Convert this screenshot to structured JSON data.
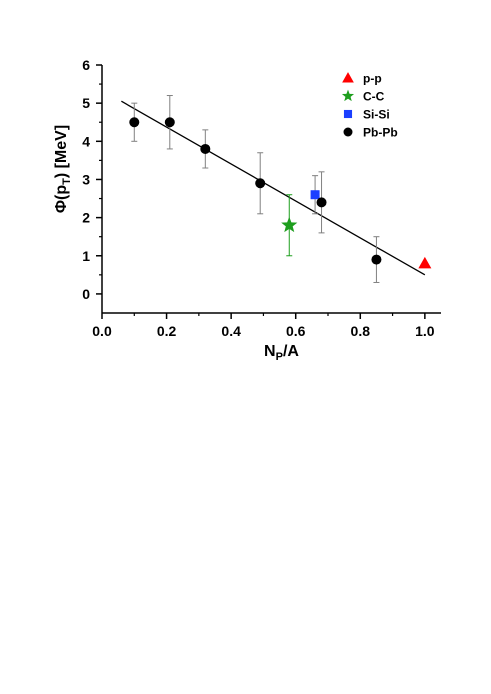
{
  "chart_data": {
    "type": "scatter",
    "xlabel": {
      "main": "N",
      "sub": "P",
      "tail": "/A"
    },
    "ylabel": {
      "pre": "Φ(p",
      "sub": "T",
      "post": ") [MeV]"
    },
    "xlim": [
      0.0,
      1.05
    ],
    "ylim": [
      -0.5,
      6.0
    ],
    "x_ticks": [
      {
        "value": 0.0,
        "label": "0.0"
      },
      {
        "value": 0.2,
        "label": "0.2"
      },
      {
        "value": 0.4,
        "label": "0.4"
      },
      {
        "value": 0.6,
        "label": "0.6"
      },
      {
        "value": 0.8,
        "label": "0.8"
      },
      {
        "value": 1.0,
        "label": "1.0"
      }
    ],
    "y_ticks": [
      {
        "value": 0,
        "label": "0"
      },
      {
        "value": 1,
        "label": "1"
      },
      {
        "value": 2,
        "label": "2"
      },
      {
        "value": 3,
        "label": "3"
      },
      {
        "value": 4,
        "label": "4"
      },
      {
        "value": 5,
        "label": "5"
      },
      {
        "value": 6,
        "label": "6"
      }
    ],
    "grid": false,
    "legend_position": "top-right",
    "fit_line": {
      "x": [
        0.06,
        1.0
      ],
      "y": [
        5.05,
        0.5
      ],
      "color": "#000000"
    },
    "series": [
      {
        "name": "p-p",
        "marker": "triangle",
        "color": "#ff0000",
        "error_color": "#808080",
        "points": [
          {
            "x": 1.0,
            "y": 0.8,
            "err": 0
          }
        ]
      },
      {
        "name": "C-C",
        "marker": "star",
        "color": "#1e9e1e",
        "error_color": "#1e9e1e",
        "points": [
          {
            "x": 0.58,
            "y": 1.8,
            "err": 0.8
          }
        ]
      },
      {
        "name": "Si-Si",
        "marker": "square",
        "color": "#1a3fff",
        "error_color": "#808080",
        "points": [
          {
            "x": 0.66,
            "y": 2.6,
            "err": 0.5
          }
        ]
      },
      {
        "name": "Pb-Pb",
        "marker": "circle",
        "color": "#000000",
        "error_color": "#808080",
        "points": [
          {
            "x": 0.1,
            "y": 4.5,
            "err": 0.5
          },
          {
            "x": 0.21,
            "y": 4.5,
            "err": 0.7
          },
          {
            "x": 0.32,
            "y": 3.8,
            "err": 0.5
          },
          {
            "x": 0.49,
            "y": 2.9,
            "err": 0.8
          },
          {
            "x": 0.68,
            "y": 2.4,
            "err": 0.8
          },
          {
            "x": 0.85,
            "y": 0.9,
            "err": 0.6
          }
        ]
      }
    ]
  }
}
